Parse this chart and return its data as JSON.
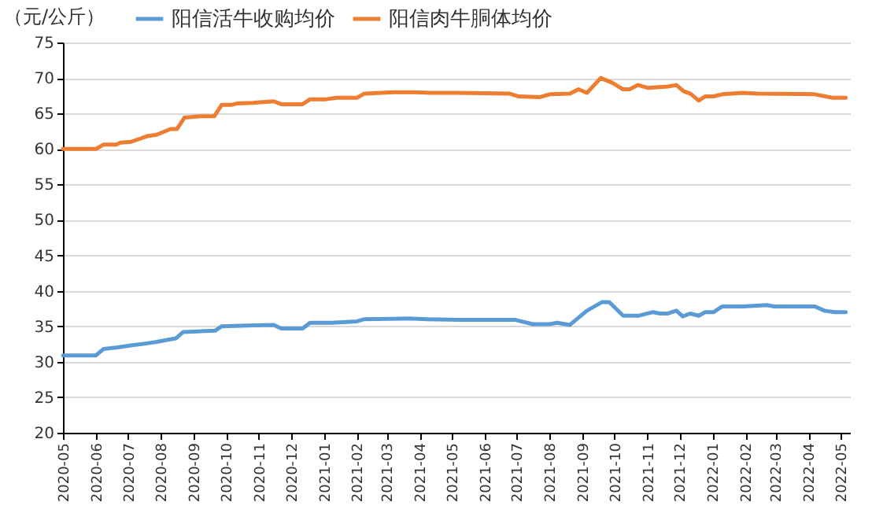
{
  "chart_data": {
    "type": "line",
    "ylabel": "（元/公斤）",
    "legend": "top",
    "grid": "y",
    "xlim": [
      "2020-05-01",
      "2022-05-10"
    ],
    "xticks": [
      "2020-05",
      "2020-06",
      "2020-07",
      "2020-08",
      "2020-09",
      "2020-10",
      "2020-11",
      "2020-12",
      "2021-01",
      "2021-02",
      "2021-03",
      "2021-04",
      "2021-05",
      "2021-06",
      "2021-07",
      "2021-08",
      "2021-09",
      "2021-10",
      "2021-11",
      "2021-12",
      "2022-01",
      "2022-02",
      "2022-03",
      "2022-04",
      "2022-05"
    ],
    "ylim": [
      20,
      75
    ],
    "yticks": [
      20,
      25,
      30,
      35,
      40,
      45,
      50,
      55,
      60,
      65,
      70,
      75
    ],
    "series": [
      {
        "name": "阳信活牛收购均价",
        "color": "#5b9bd5",
        "x": [
          "2020-05-01",
          "2020-06-01",
          "2020-06-08",
          "2020-06-20",
          "2020-07-04",
          "2020-07-19",
          "2020-07-28",
          "2020-08-15",
          "2020-08-22",
          "2020-09-21",
          "2020-09-27",
          "2020-10-21",
          "2020-11-15",
          "2020-11-22",
          "2020-12-12",
          "2020-12-19",
          "2021-01-08",
          "2021-02-01",
          "2021-02-08",
          "2021-03-22",
          "2021-04-08",
          "2021-05-08",
          "2021-06-30",
          "2021-07-16",
          "2021-08-01",
          "2021-08-08",
          "2021-08-20",
          "2021-09-05",
          "2021-09-19",
          "2021-09-26",
          "2021-10-09",
          "2021-10-24",
          "2021-11-06",
          "2021-11-13",
          "2021-11-20",
          "2021-11-28",
          "2021-12-04",
          "2021-12-11",
          "2021-12-19",
          "2021-12-25",
          "2022-01-02",
          "2022-01-10",
          "2022-01-29",
          "2022-02-21",
          "2022-02-28",
          "2022-04-07",
          "2022-04-16",
          "2022-04-26",
          "2022-05-06"
        ],
        "values": [
          30.9,
          30.9,
          31.8,
          32.0,
          32.3,
          32.6,
          32.8,
          33.3,
          34.2,
          34.4,
          35.0,
          35.1,
          35.2,
          34.7,
          34.7,
          35.5,
          35.5,
          35.7,
          36.0,
          36.1,
          36.0,
          35.9,
          35.9,
          35.3,
          35.3,
          35.5,
          35.2,
          37.2,
          38.4,
          38.4,
          36.5,
          36.5,
          37.0,
          36.8,
          36.8,
          37.2,
          36.4,
          36.8,
          36.5,
          37.0,
          37.0,
          37.8,
          37.8,
          38.0,
          37.8,
          37.8,
          37.2,
          37.0,
          37.0
        ]
      },
      {
        "name": "阳信肉牛胴体均价",
        "color": "#ed7d31",
        "x": [
          "2020-05-01",
          "2020-06-01",
          "2020-06-08",
          "2020-06-20",
          "2020-06-24",
          "2020-07-04",
          "2020-07-19",
          "2020-07-28",
          "2020-08-10",
          "2020-08-16",
          "2020-08-23",
          "2020-09-07",
          "2020-09-20",
          "2020-09-27",
          "2020-10-06",
          "2020-10-11",
          "2020-10-26",
          "2020-11-15",
          "2020-11-22",
          "2020-12-12",
          "2020-12-19",
          "2021-01-03",
          "2021-01-13",
          "2021-02-01",
          "2021-02-08",
          "2021-03-08",
          "2021-03-27",
          "2021-04-11",
          "2021-05-08",
          "2021-06-24",
          "2021-07-03",
          "2021-07-23",
          "2021-08-01",
          "2021-08-20",
          "2021-08-28",
          "2021-09-05",
          "2021-09-18",
          "2021-09-29",
          "2021-10-09",
          "2021-10-15",
          "2021-10-23",
          "2021-11-01",
          "2021-11-11",
          "2021-11-20",
          "2021-11-28",
          "2021-12-05",
          "2021-12-11",
          "2021-12-19",
          "2021-12-25",
          "2022-01-02",
          "2022-01-10",
          "2022-01-29",
          "2022-02-13",
          "2022-04-07",
          "2022-04-17",
          "2022-04-24",
          "2022-05-06"
        ],
        "values": [
          60.0,
          60.0,
          60.6,
          60.6,
          60.9,
          61.0,
          61.8,
          62.0,
          62.8,
          62.8,
          64.4,
          64.6,
          64.6,
          66.2,
          66.2,
          66.4,
          66.5,
          66.7,
          66.3,
          66.3,
          67.0,
          67.0,
          67.2,
          67.2,
          67.8,
          68.0,
          68.0,
          67.9,
          67.9,
          67.8,
          67.4,
          67.3,
          67.7,
          67.8,
          68.4,
          67.9,
          70.0,
          69.3,
          68.4,
          68.4,
          69.0,
          68.6,
          68.7,
          68.8,
          69.0,
          68.1,
          67.8,
          66.8,
          67.4,
          67.4,
          67.7,
          67.9,
          67.8,
          67.7,
          67.4,
          67.2,
          67.2
        ]
      }
    ]
  }
}
